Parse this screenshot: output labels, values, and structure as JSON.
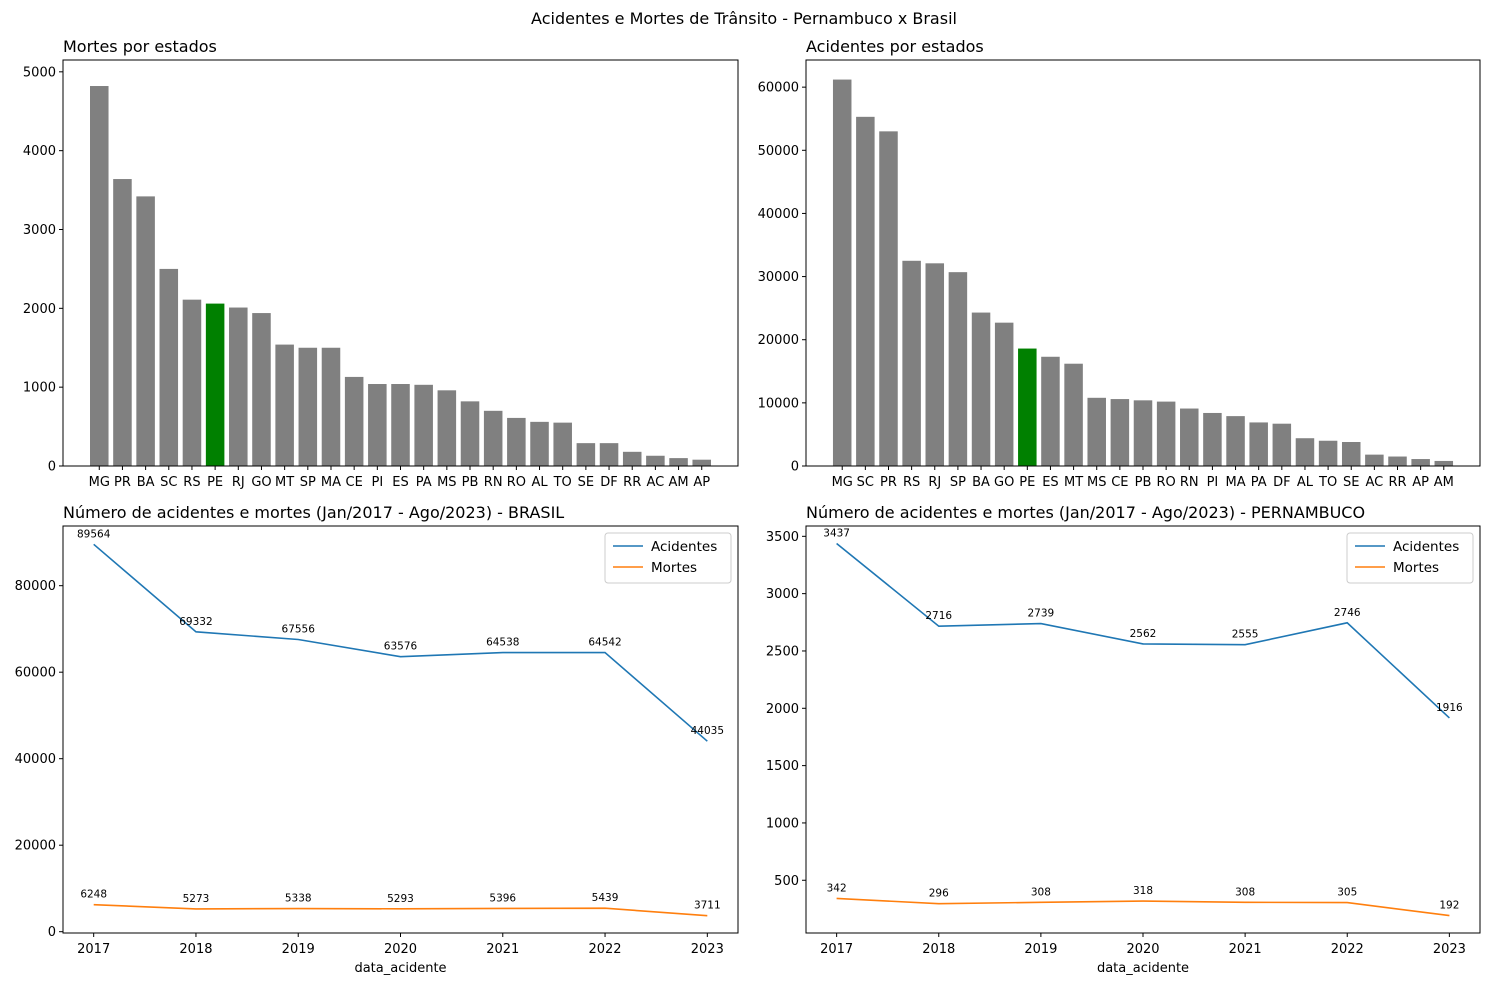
{
  "figure_title": "Acidentes e Mortes de Trânsito - Pernambuco x Brasil",
  "colors": {
    "bar_default": "#808080",
    "bar_highlight": "#008000",
    "line_acidentes": "#1f77b4",
    "line_mortes": "#ff7f0e"
  },
  "chart_data": [
    {
      "id": "mortes-estados",
      "type": "bar",
      "title": "Mortes por estados",
      "categories": [
        "MG",
        "PR",
        "BA",
        "SC",
        "RS",
        "PE",
        "RJ",
        "GO",
        "MT",
        "SP",
        "MA",
        "CE",
        "PI",
        "ES",
        "PA",
        "MS",
        "PB",
        "RN",
        "RO",
        "AL",
        "TO",
        "SE",
        "DF",
        "RR",
        "AC",
        "AM",
        "AP"
      ],
      "values": [
        4820,
        3640,
        3420,
        2500,
        2110,
        2060,
        2010,
        1940,
        1540,
        1500,
        1500,
        1130,
        1040,
        1040,
        1030,
        960,
        820,
        700,
        610,
        560,
        550,
        290,
        290,
        180,
        130,
        100,
        80
      ],
      "highlight": "PE",
      "ylim": [
        0,
        5150
      ],
      "yticks": [
        0,
        1000,
        2000,
        3000,
        4000,
        5000
      ]
    },
    {
      "id": "acidentes-estados",
      "type": "bar",
      "title": "Acidentes por estados",
      "categories": [
        "MG",
        "SC",
        "PR",
        "RS",
        "RJ",
        "SP",
        "BA",
        "GO",
        "PE",
        "ES",
        "MT",
        "MS",
        "CE",
        "PB",
        "RO",
        "RN",
        "PI",
        "MA",
        "PA",
        "DF",
        "AL",
        "TO",
        "SE",
        "AC",
        "RR",
        "AP",
        "AM"
      ],
      "values": [
        61200,
        55300,
        53000,
        32500,
        32100,
        30700,
        24300,
        22700,
        18600,
        17300,
        16200,
        10800,
        10600,
        10400,
        10200,
        9100,
        8400,
        7900,
        6900,
        6700,
        4400,
        4000,
        3800,
        1800,
        1500,
        1100,
        800
      ],
      "highlight": "PE",
      "ylim": [
        0,
        64300
      ],
      "yticks": [
        0,
        10000,
        20000,
        30000,
        40000,
        50000,
        60000
      ]
    },
    {
      "id": "brasil-linhas",
      "type": "line",
      "title": "Número de acidentes e mortes (Jan/2017 - Ago/2023) - BRASIL",
      "xlabel": "data_acidente",
      "x": [
        2017,
        2018,
        2019,
        2020,
        2021,
        2022,
        2023
      ],
      "series": [
        {
          "name": "Acidentes",
          "values": [
            89564,
            69332,
            67556,
            63576,
            64538,
            64542,
            44035
          ]
        },
        {
          "name": "Mortes",
          "values": [
            6248,
            5273,
            5338,
            5293,
            5396,
            5439,
            3711
          ]
        }
      ],
      "labels": {
        "Acidentes": [
          "89564",
          "69332",
          "67556",
          "63576",
          "64538",
          "64542",
          "44035"
        ],
        "Mortes": [
          "6248",
          "5273",
          "5338",
          "5293",
          "5396",
          "5439",
          "3711"
        ]
      },
      "ylim": [
        -300,
        93800
      ],
      "yticks": [
        0,
        20000,
        40000,
        60000,
        80000
      ],
      "legend": "upper right"
    },
    {
      "id": "pernambuco-linhas",
      "type": "line",
      "title": "Número de acidentes e mortes (Jan/2017 - Ago/2023) - PERNAMBUCO",
      "xlabel": "data_acidente",
      "x": [
        2017,
        2018,
        2019,
        2020,
        2021,
        2022,
        2023
      ],
      "series": [
        {
          "name": "Acidentes",
          "values": [
            3437,
            2716,
            2739,
            2562,
            2555,
            2746,
            1916
          ]
        },
        {
          "name": "Mortes",
          "values": [
            342,
            296,
            308,
            318,
            308,
            305,
            192
          ]
        }
      ],
      "labels": {
        "Acidentes": [
          "3437",
          "2716",
          "2739",
          "2562",
          "2555",
          "2746",
          "1916"
        ],
        "Mortes": [
          "342",
          "296",
          "308",
          "318",
          "308",
          "305",
          "192"
        ]
      },
      "ylim": [
        40,
        3590
      ],
      "yticks": [
        500,
        1000,
        1500,
        2000,
        2500,
        3000,
        3500
      ],
      "legend": "upper right"
    }
  ]
}
